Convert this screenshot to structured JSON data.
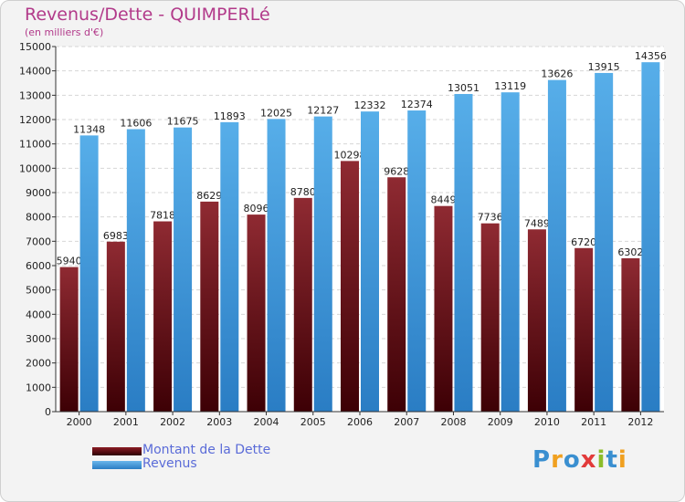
{
  "title": "Revenus/Dette - QUIMPERLé",
  "subtitle": "(en milliers d'€)",
  "colors": {
    "dette": "#8b1c24",
    "revenus": "#4a9fe0",
    "title": "#b23a8a",
    "legend_text": "#5a6bd8"
  },
  "legend": {
    "items": [
      {
        "label": "Montant de la Dette",
        "color": "#6b0f16"
      },
      {
        "label": "Revenus",
        "color": "#4a9fe0"
      }
    ],
    "placement": "bottom-left"
  },
  "logo": {
    "text": "Proxiti",
    "icon": "proxiti-logo"
  },
  "chart_data": {
    "type": "bar",
    "title": "Revenus/Dette - QUIMPERLé",
    "subtitle": "(en milliers d'€)",
    "xlabel": "",
    "ylabel": "",
    "ylim": [
      0,
      15000
    ],
    "yticks": [
      0,
      1000,
      2000,
      3000,
      4000,
      5000,
      6000,
      7000,
      8000,
      9000,
      10000,
      11000,
      12000,
      13000,
      14000,
      15000
    ],
    "grid": true,
    "categories": [
      "2000",
      "2001",
      "2002",
      "2003",
      "2004",
      "2005",
      "2006",
      "2007",
      "2008",
      "2009",
      "2010",
      "2011",
      "2012"
    ],
    "series": [
      {
        "name": "Montant de la Dette",
        "values": [
          5940,
          6983,
          7818,
          8629,
          8096,
          8780,
          10298,
          9628,
          8449,
          7736,
          7489,
          6720,
          6302
        ],
        "labels": [
          "5940",
          "6983",
          "7818",
          "8629",
          "8096",
          "8780",
          "10298",
          "9628",
          "8449",
          "7736",
          "7489",
          "6720",
          "6302"
        ]
      },
      {
        "name": "Revenus",
        "values": [
          11348,
          11606,
          11675,
          11893,
          12025,
          12127,
          12332,
          12374,
          13051,
          13119,
          13626,
          13915,
          14356
        ],
        "labels": [
          "11348",
          "11606",
          "11675",
          "11893",
          "12025",
          "12127",
          "12332",
          "12374",
          "13051",
          "13119",
          "13626",
          "13915",
          "14356"
        ]
      }
    ]
  }
}
